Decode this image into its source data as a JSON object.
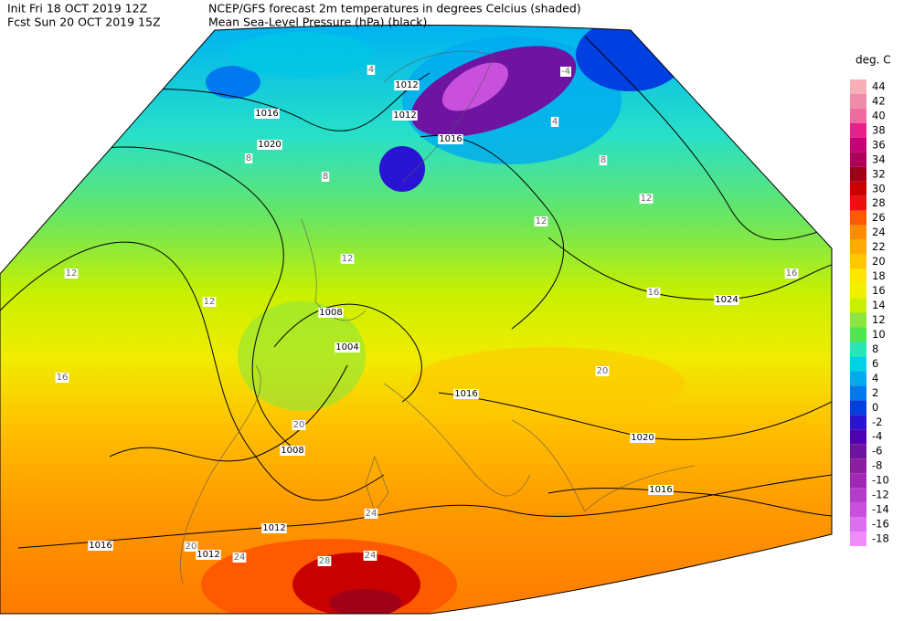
{
  "header": {
    "init": "Init  Fri 18 OCT 2019 12Z",
    "fcst": "Fcst Sun 20 OCT 2019 15Z",
    "title1": "NCEP/GFS forecast 2m temperatures in degrees Celcius (shaded)",
    "title2": "Mean Sea-Level Pressure (hPa) (black)."
  },
  "legend": {
    "unit": "deg. C",
    "labels": [
      "44",
      "42",
      "40",
      "38",
      "36",
      "34",
      "32",
      "30",
      "28",
      "26",
      "24",
      "22",
      "20",
      "18",
      "16",
      "14",
      "12",
      "10",
      "8",
      "6",
      "4",
      "2",
      "0",
      "-2",
      "-4",
      "-6",
      "-8",
      "-10",
      "-12",
      "-14",
      "-16",
      "-18"
    ],
    "colors": [
      "#f7b0b8",
      "#f08caa",
      "#f06aa0",
      "#e8208c",
      "#c80078",
      "#b0005a",
      "#a00018",
      "#c80000",
      "#ee1010",
      "#ff5a00",
      "#ff8c00",
      "#ffaa00",
      "#ffc800",
      "#ffe600",
      "#f0f000",
      "#c8f000",
      "#8ce63c",
      "#50e650",
      "#28e6b4",
      "#00d2e6",
      "#00aaf0",
      "#0078f0",
      "#0040e0",
      "#2814d2",
      "#5000b4",
      "#6e14a0",
      "#8c1ea0",
      "#a028b4",
      "#b43cc8",
      "#c850dc",
      "#dc6ef0",
      "#f08cfa"
    ]
  },
  "isobar_labels": [
    "1012",
    "1012",
    "1016",
    "1020",
    "1016",
    "1008",
    "1004",
    "1016",
    "1024",
    "1020",
    "1016",
    "1008",
    "1012",
    "1012",
    "1016"
  ],
  "temperature_labels": [
    "4",
    "8",
    "8",
    "12",
    "12",
    "12",
    "12",
    "16",
    "16",
    "16",
    "20",
    "20",
    "24",
    "24",
    "28",
    "24",
    "20",
    "12",
    "8",
    "4",
    "-4"
  ]
}
